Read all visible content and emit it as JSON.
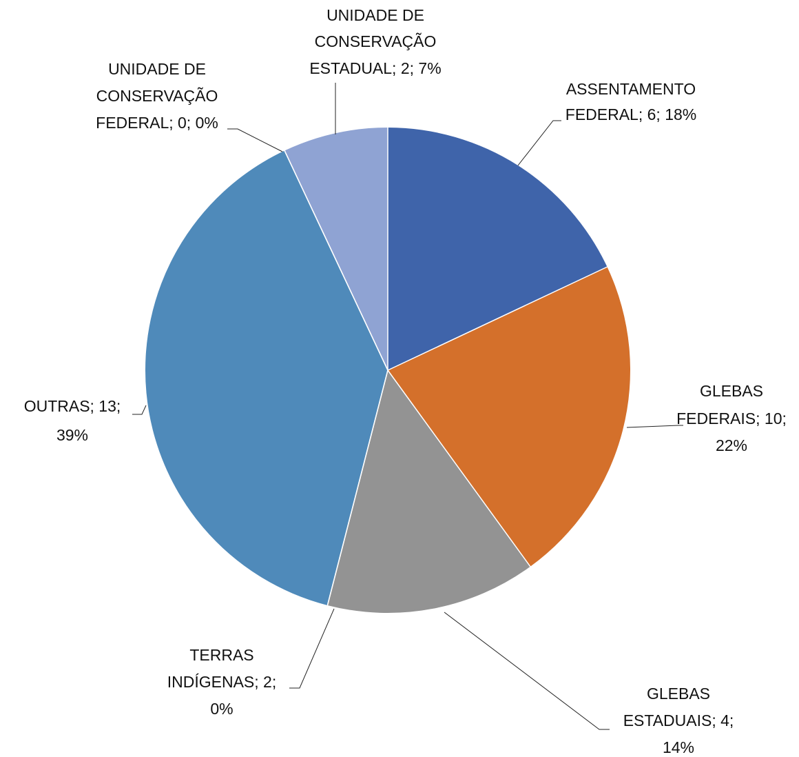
{
  "chart_data": {
    "type": "pie",
    "value_labels": [
      [
        "ASSENTAMENTO",
        "FEDERAL; 6; 18%"
      ],
      [
        "GLEBAS",
        "FEDERAIS; 10;",
        "22%"
      ],
      [
        "GLEBAS",
        "ESTADUAIS; 4;",
        "14%"
      ],
      [
        "TERRAS",
        "INDÍGENAS; 2;",
        "0%"
      ],
      [
        "OUTRAS; 13;",
        "39%"
      ],
      [
        "UNIDADE DE",
        "CONSERVAÇÃO",
        "FEDERAL; 0; 0%"
      ],
      [
        "UNIDADE DE",
        "CONSERVAÇÃO",
        "ESTADUAL; 2; 7%"
      ]
    ],
    "values": [
      18,
      22,
      14,
      0,
      39,
      0,
      7
    ],
    "colors": [
      "#3f64aa",
      "#d4702b",
      "#939393",
      "#9bbb59",
      "#4f8aba",
      "#2c4d75",
      "#8fa3d3"
    ]
  }
}
